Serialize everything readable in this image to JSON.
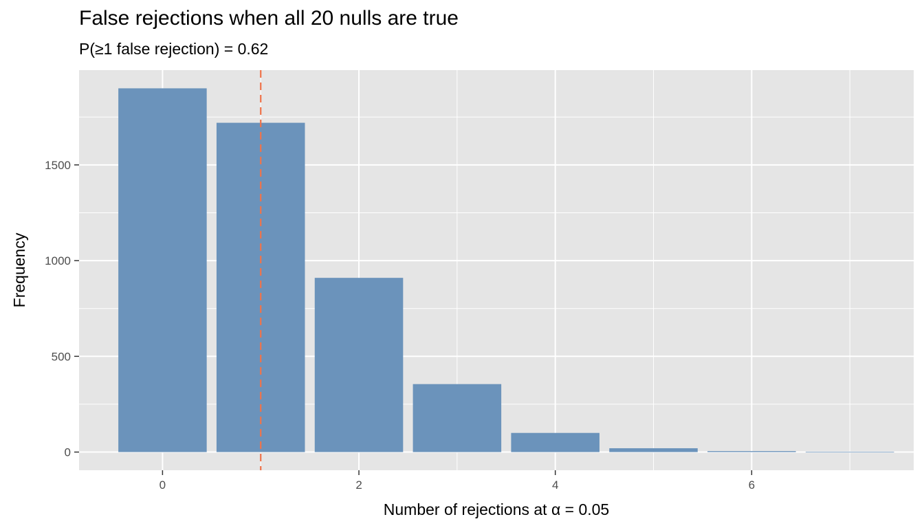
{
  "chart_data": {
    "type": "bar",
    "title": "False rejections when all 20 nulls are true",
    "subtitle": "P(≥1 false rejection) = 0.62",
    "xlabel": "Number of rejections at α = 0.05",
    "ylabel": "Frequency",
    "x": [
      0,
      1,
      2,
      3,
      4,
      5,
      6,
      7
    ],
    "values": [
      1900,
      1720,
      910,
      355,
      100,
      20,
      5,
      1
    ],
    "xlim": [
      -0.85,
      7.65
    ],
    "ylim": [
      -95,
      1995
    ],
    "x_ticks": [
      0,
      2,
      4,
      6
    ],
    "x_tick_labels": [
      "0",
      "2",
      "4",
      "6"
    ],
    "y_ticks": [
      0,
      500,
      1000,
      1500
    ],
    "y_tick_labels": [
      "0",
      "500",
      "1000",
      "1500"
    ],
    "bar_width": 0.9,
    "reference_line": {
      "x": 1,
      "style": "dashed"
    },
    "grid": true,
    "colors": {
      "bar": "#6b93bb",
      "reference_line": "#f0734a",
      "panel_background": "#e5e5e5",
      "grid": "#ffffff"
    }
  }
}
